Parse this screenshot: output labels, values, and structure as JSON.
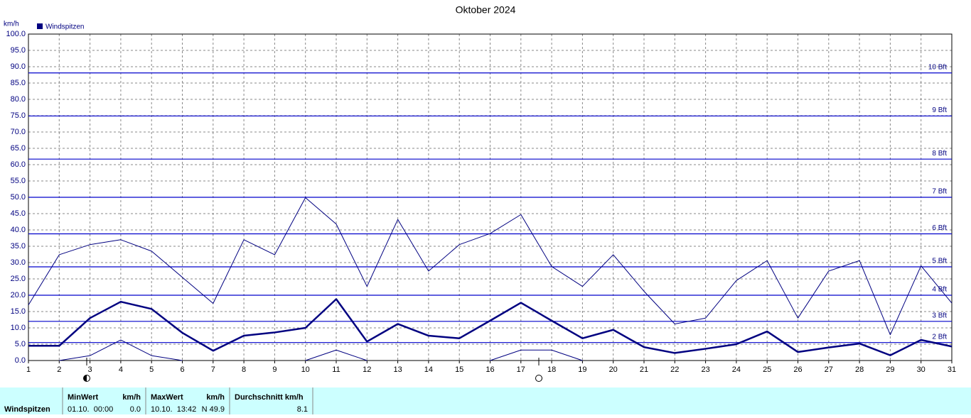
{
  "chart_data": {
    "type": "line",
    "title": "Oktober 2024",
    "y_label": "km/h",
    "legend": "Windspitzen",
    "color": "#000080",
    "x": [
      1,
      2,
      3,
      4,
      5,
      6,
      7,
      8,
      9,
      10,
      11,
      12,
      13,
      14,
      15,
      16,
      17,
      18,
      19,
      20,
      21,
      22,
      23,
      24,
      25,
      26,
      27,
      28,
      29,
      30,
      31
    ],
    "xlim": [
      1,
      31
    ],
    "ylim": [
      0,
      100
    ],
    "yticks": [
      {
        "value": 0,
        "label": "0.0"
      },
      {
        "value": 5,
        "label": "5.0"
      },
      {
        "value": 10,
        "label": "10.0"
      },
      {
        "value": 15,
        "label": "15.0"
      },
      {
        "value": 20,
        "label": "20.0"
      },
      {
        "value": 25,
        "label": "25.0"
      },
      {
        "value": 30,
        "label": "30.0"
      },
      {
        "value": 35,
        "label": "35.0"
      },
      {
        "value": 40,
        "label": "40.0"
      },
      {
        "value": 45,
        "label": "45.0"
      },
      {
        "value": 50,
        "label": "50.0"
      },
      {
        "value": 55,
        "label": "55.0"
      },
      {
        "value": 60,
        "label": "60.0"
      },
      {
        "value": 65,
        "label": "65.0"
      },
      {
        "value": 70,
        "label": "70.0"
      },
      {
        "value": 75,
        "label": "75.0"
      },
      {
        "value": 80,
        "label": "80.0"
      },
      {
        "value": 85,
        "label": "85.0"
      },
      {
        "value": 90,
        "label": "90.0"
      },
      {
        "value": 95,
        "label": "95.0"
      },
      {
        "value": 100,
        "label": "100.0"
      }
    ],
    "grid": true,
    "reference_lines": [
      {
        "value": 5.5,
        "label": "2 Bft"
      },
      {
        "value": 12,
        "label": "3 Bft"
      },
      {
        "value": 20,
        "label": "4 Bft"
      },
      {
        "value": 28.7,
        "label": "5 Bft"
      },
      {
        "value": 38.8,
        "label": "6 Bft"
      },
      {
        "value": 50,
        "label": "7 Bft"
      },
      {
        "value": 61.7,
        "label": "8 Bft"
      },
      {
        "value": 74.9,
        "label": "9 Bft"
      },
      {
        "value": 88.1,
        "label": "10 Bft"
      }
    ],
    "series": [
      {
        "color": "#000080",
        "width": 1,
        "values": [
          17,
          32.4,
          35.5,
          37,
          33.5,
          25.5,
          17.5,
          37,
          32.4,
          49.9,
          41.8,
          22.7,
          43.2,
          27.4,
          35.5,
          38.9,
          44.7,
          28.8,
          22.7,
          32.4,
          21.2,
          11.2,
          13,
          24.5,
          30.6,
          13,
          27.4,
          30.6,
          7.9,
          29,
          17.6
        ]
      },
      {
        "color": "#000080",
        "width": 2.5,
        "values": [
          4.5,
          4.5,
          13,
          18,
          15.8,
          8.5,
          3,
          7.6,
          8.6,
          10,
          18.8,
          5.8,
          11.2,
          7.6,
          6.8,
          12.2,
          17.7,
          12.2,
          6.8,
          9.4,
          4.1,
          2.3,
          3.6,
          5,
          8.9,
          2.6,
          4,
          5.2,
          1.6,
          6.3,
          4.3
        ]
      },
      {
        "color": "#000080",
        "width": 1,
        "values": [
          null,
          0,
          1.5,
          6.3,
          1.5,
          0,
          null,
          null,
          null,
          0,
          3.2,
          0,
          null,
          null,
          null,
          0,
          3.2,
          3.2,
          0,
          null,
          null,
          null,
          null,
          null,
          null,
          null,
          null,
          null,
          null,
          null,
          null
        ]
      }
    ]
  },
  "summary": {
    "label": "Windspitzen",
    "min_header": "MinWert",
    "min_unit": "km/h",
    "min_time": "01.10.  00:00",
    "min_value": "0.0",
    "max_header": "MaxWert",
    "max_unit": "km/h",
    "max_time": "10.10.  13:42",
    "max_value": "N 49.9",
    "avg_header": "Durchschnitt km/h",
    "avg_value": "8.1"
  }
}
